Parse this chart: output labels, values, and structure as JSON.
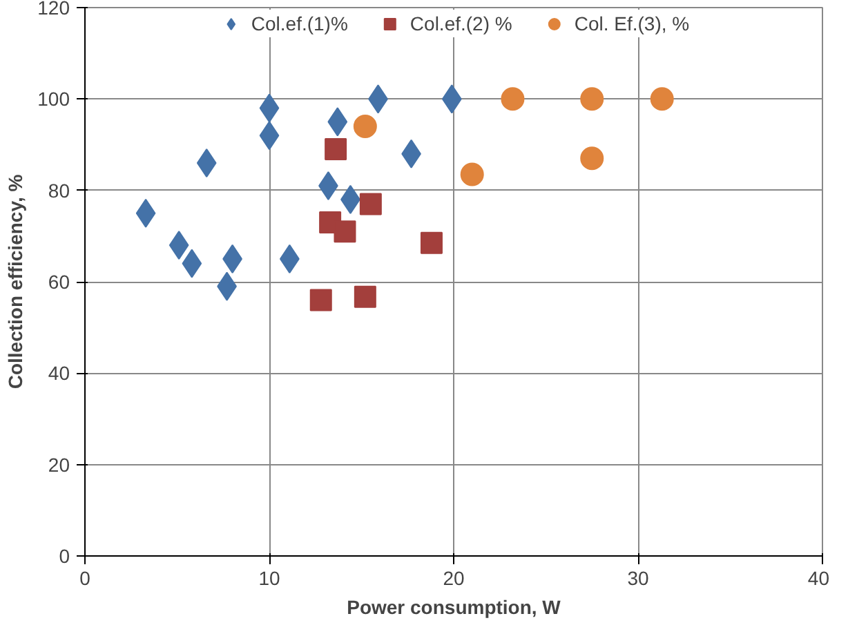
{
  "chart_data": {
    "type": "scatter",
    "xlabel": "Power consumption, W",
    "ylabel": "Collection efficiency, %",
    "xlim": [
      0,
      40
    ],
    "xticks": [
      0,
      10,
      20,
      30,
      40
    ],
    "ylim": [
      0,
      120
    ],
    "yticks": [
      0,
      20,
      40,
      60,
      80,
      100,
      120
    ],
    "grid": true,
    "legend": "top",
    "series": [
      {
        "name": "Col.ef.(1)%",
        "color": "#4472a8",
        "marker": "diamond",
        "x": [
          3.3,
          5.1,
          5.8,
          6.6,
          7.7,
          8.0,
          10.0,
          10.0,
          11.1,
          13.2,
          13.7,
          14.4,
          15.9,
          17.7,
          19.9
        ],
        "values": [
          75,
          68,
          64,
          86,
          59,
          65,
          98,
          92,
          65,
          81,
          95,
          78,
          100,
          88,
          100
        ]
      },
      {
        "name": "Col.ef.(2) %",
        "color": "#a33f3c",
        "marker": "square",
        "x": [
          13.6,
          13.3,
          14.1,
          15.5,
          18.8,
          12.8,
          15.2
        ],
        "values": [
          89,
          73,
          71,
          77,
          68.5,
          56,
          56.7
        ]
      },
      {
        "name": "Col. Ef.(3), %",
        "color": "#e0843c",
        "marker": "circle",
        "x": [
          15.2,
          21.0,
          23.2,
          27.5,
          27.5,
          31.3
        ],
        "values": [
          94,
          83.5,
          100,
          100,
          87,
          100
        ]
      }
    ]
  }
}
